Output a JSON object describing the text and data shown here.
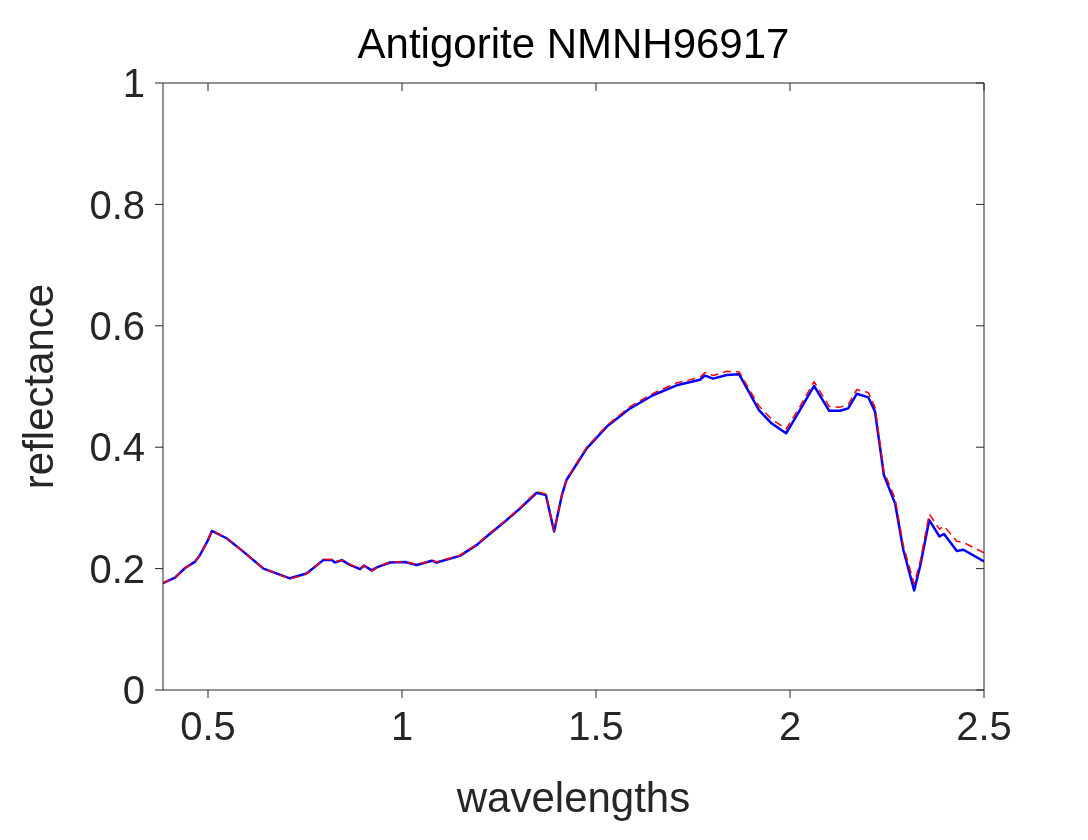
{
  "chart_data": {
    "type": "line",
    "title": "Antigorite NMNH96917",
    "xlabel": "wavelengths",
    "ylabel": "reflectance",
    "x": [
      0.384,
      0.415,
      0.441,
      0.466,
      0.479,
      0.5,
      0.51,
      0.548,
      0.591,
      0.643,
      0.711,
      0.754,
      0.797,
      0.819,
      0.827,
      0.845,
      0.866,
      0.892,
      0.902,
      0.922,
      0.935,
      0.969,
      1.008,
      1.038,
      1.077,
      1.089,
      1.149,
      1.193,
      1.222,
      1.27,
      1.304,
      1.347,
      1.371,
      1.392,
      1.412,
      1.424,
      1.476,
      1.528,
      1.588,
      1.648,
      1.708,
      1.768,
      1.781,
      1.802,
      1.837,
      1.869,
      1.92,
      1.953,
      1.99,
      2.021,
      2.062,
      2.101,
      2.129,
      2.15,
      2.172,
      2.202,
      2.219,
      2.242,
      2.271,
      2.292,
      2.32,
      2.335,
      2.359,
      2.385,
      2.397,
      2.43,
      2.447,
      2.5
    ],
    "series": [
      {
        "color": "#ff0000",
        "line_style": "dashed",
        "values": [
          0.176,
          0.185,
          0.201,
          0.211,
          0.222,
          0.247,
          0.263,
          0.25,
          0.228,
          0.2,
          0.183,
          0.191,
          0.215,
          0.215,
          0.211,
          0.214,
          0.207,
          0.2,
          0.205,
          0.196,
          0.202,
          0.211,
          0.211,
          0.207,
          0.213,
          0.211,
          0.222,
          0.24,
          0.256,
          0.281,
          0.3,
          0.327,
          0.323,
          0.262,
          0.322,
          0.347,
          0.4,
          0.436,
          0.467,
          0.489,
          0.506,
          0.515,
          0.523,
          0.518,
          0.525,
          0.524,
          0.468,
          0.446,
          0.43,
          0.462,
          0.508,
          0.467,
          0.466,
          0.47,
          0.495,
          0.49,
          0.466,
          0.36,
          0.315,
          0.238,
          0.175,
          0.21,
          0.29,
          0.265,
          0.27,
          0.245,
          0.243,
          0.226
        ]
      },
      {
        "color": "#0000ff",
        "line_style": "solid",
        "values": [
          0.176,
          0.185,
          0.201,
          0.211,
          0.222,
          0.247,
          0.262,
          0.25,
          0.228,
          0.2,
          0.184,
          0.192,
          0.214,
          0.214,
          0.21,
          0.214,
          0.206,
          0.199,
          0.205,
          0.197,
          0.202,
          0.21,
          0.211,
          0.206,
          0.213,
          0.21,
          0.221,
          0.239,
          0.255,
          0.28,
          0.299,
          0.325,
          0.321,
          0.261,
          0.321,
          0.346,
          0.398,
          0.434,
          0.464,
          0.486,
          0.502,
          0.511,
          0.518,
          0.513,
          0.519,
          0.52,
          0.461,
          0.439,
          0.423,
          0.456,
          0.501,
          0.46,
          0.46,
          0.464,
          0.488,
          0.482,
          0.459,
          0.354,
          0.307,
          0.231,
          0.164,
          0.203,
          0.28,
          0.253,
          0.257,
          0.229,
          0.231,
          0.212
        ]
      }
    ],
    "xlim": [
      0.384,
      2.5
    ],
    "xticks": [
      0.5,
      1,
      1.5,
      2,
      2.5
    ],
    "ylim": [
      0,
      1
    ],
    "yticks": [
      0,
      0.2,
      0.4,
      0.6,
      0.8,
      1
    ]
  }
}
